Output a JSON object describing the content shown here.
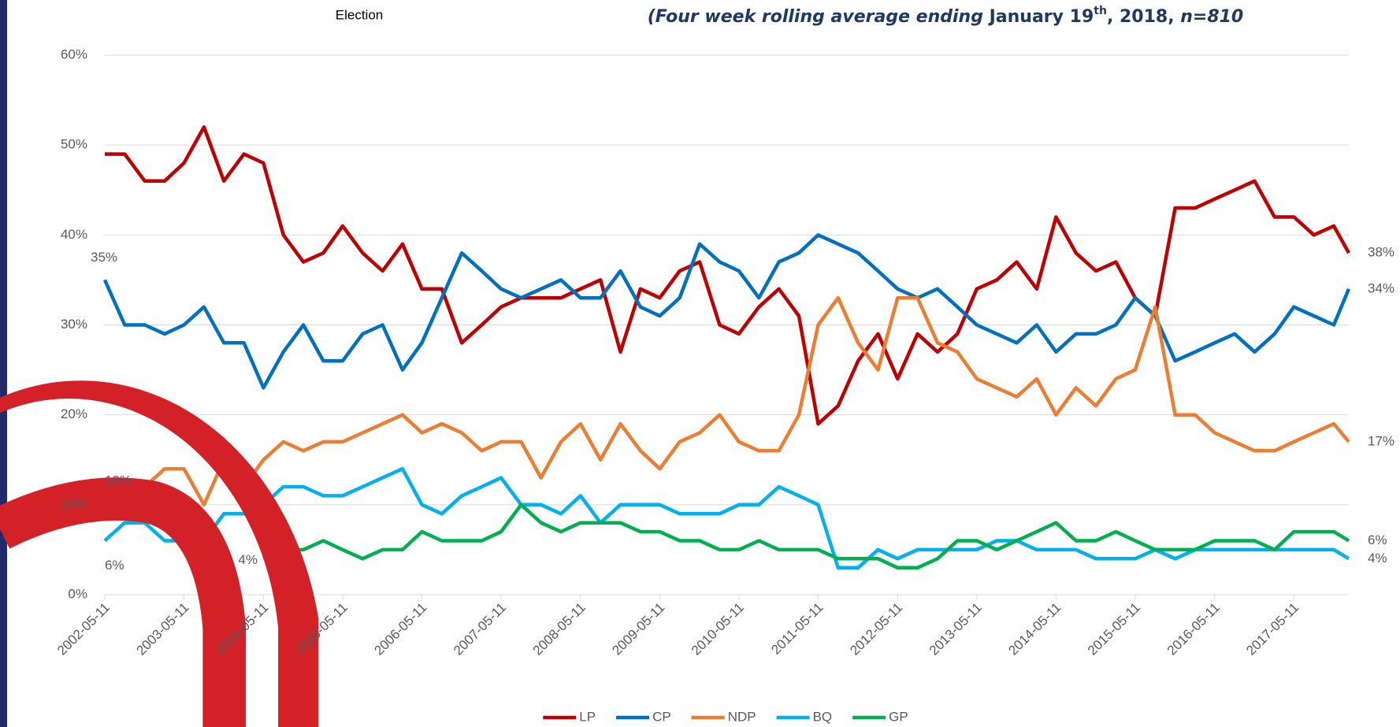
{
  "chart_data": {
    "type": "line",
    "title": "Election",
    "subtitle_parts": [
      "(Four week rolling average ending ",
      "January 19",
      "th",
      ", 2018, ",
      "n=810"
    ],
    "x": [
      "2002-05-11",
      "2002-08-11",
      "2002-11-11",
      "2003-02-11",
      "2003-05-11",
      "2003-08-11",
      "2003-11-11",
      "2004-02-11",
      "2004-05-11",
      "2004-08-11",
      "2004-11-11",
      "2005-02-11",
      "2005-05-11",
      "2005-08-11",
      "2005-11-11",
      "2006-02-11",
      "2006-05-11",
      "2006-08-11",
      "2006-11-11",
      "2007-02-11",
      "2007-05-11",
      "2007-08-11",
      "2007-11-11",
      "2008-02-11",
      "2008-05-11",
      "2008-08-11",
      "2008-11-11",
      "2009-02-11",
      "2009-05-11",
      "2009-08-11",
      "2009-11-11",
      "2010-02-11",
      "2010-05-11",
      "2010-08-11",
      "2010-11-11",
      "2011-02-11",
      "2011-05-11",
      "2011-08-11",
      "2011-11-11",
      "2012-02-11",
      "2012-05-11",
      "2012-08-11",
      "2012-11-11",
      "2013-02-11",
      "2013-05-11",
      "2013-08-11",
      "2013-11-11",
      "2014-02-11",
      "2014-05-11",
      "2014-08-11",
      "2014-11-11",
      "2015-02-11",
      "2015-05-11",
      "2015-08-11",
      "2015-11-11",
      "2016-02-11",
      "2016-05-11",
      "2016-08-11",
      "2016-11-11",
      "2017-02-11",
      "2017-05-11",
      "2017-08-11",
      "2017-11-11",
      "2018-01-19"
    ],
    "xlim": [
      "2002-05-11",
      "2018-01-19"
    ],
    "xticks": [
      "2002-05-11",
      "2003-05-11",
      "2004-05-11",
      "2005-05-11",
      "2006-05-11",
      "2007-05-11",
      "2008-05-11",
      "2009-05-11",
      "2010-05-11",
      "2011-05-11",
      "2012-05-11",
      "2013-05-11",
      "2014-05-11",
      "2015-05-11",
      "2016-05-11",
      "2017-05-11"
    ],
    "ylim": [
      0,
      60
    ],
    "yticks": [
      {
        "value": 0,
        "label": "0%"
      },
      {
        "value": 10,
        "label": "10%"
      },
      {
        "value": 20,
        "label": "20%"
      },
      {
        "value": 30,
        "label": "30%"
      },
      {
        "value": 40,
        "label": "40%"
      },
      {
        "value": 50,
        "label": "50%"
      },
      {
        "value": 60,
        "label": "60%"
      }
    ],
    "grid": true,
    "legend": "bottom",
    "series": [
      {
        "name": "LP",
        "color": "#c00000",
        "values": [
          49,
          49,
          46,
          46,
          48,
          52,
          46,
          49,
          48,
          40,
          37,
          38,
          41,
          38,
          36,
          39,
          34,
          34,
          28,
          30,
          32,
          33,
          33,
          33,
          34,
          35,
          27,
          34,
          33,
          36,
          37,
          30,
          29,
          32,
          34,
          31,
          19,
          21,
          26,
          29,
          24,
          29,
          27,
          29,
          34,
          35,
          37,
          34,
          42,
          38,
          36,
          37,
          33,
          31,
          43,
          43,
          44,
          45,
          46,
          42,
          42,
          40,
          41,
          38
        ],
        "value_labels": [
          null,
          null,
          null,
          null,
          null,
          null,
          null,
          null,
          null,
          null,
          null,
          null,
          null,
          null,
          null,
          null,
          null,
          null,
          null,
          null,
          null,
          null,
          null,
          null,
          null,
          null,
          null,
          null,
          null,
          null,
          null,
          null,
          null,
          null,
          null,
          null,
          null,
          null,
          null,
          null,
          null,
          null,
          null,
          null,
          null,
          null,
          null,
          null,
          null,
          null,
          null,
          null,
          null,
          null,
          null,
          null,
          null,
          null,
          null,
          null,
          null,
          null,
          null,
          "38%"
        ]
      },
      {
        "name": "CP",
        "color": "#0070c0",
        "values": [
          35,
          30,
          30,
          29,
          30,
          32,
          28,
          28,
          23,
          27,
          30,
          26,
          26,
          29,
          30,
          25,
          28,
          33,
          38,
          36,
          34,
          33,
          34,
          35,
          33,
          33,
          36,
          32,
          31,
          33,
          39,
          37,
          36,
          33,
          37,
          38,
          40,
          39,
          38,
          36,
          34,
          33,
          34,
          32,
          30,
          29,
          28,
          30,
          27,
          29,
          29,
          30,
          33,
          31,
          26,
          27,
          28,
          29,
          27,
          29,
          32,
          31,
          30,
          34
        ],
        "value_labels": [
          "35%",
          null,
          null,
          null,
          null,
          null,
          null,
          null,
          null,
          null,
          null,
          null,
          null,
          null,
          null,
          null,
          null,
          null,
          null,
          null,
          null,
          null,
          null,
          null,
          null,
          null,
          null,
          null,
          null,
          null,
          null,
          null,
          null,
          null,
          null,
          null,
          null,
          null,
          null,
          null,
          null,
          null,
          null,
          null,
          null,
          null,
          null,
          null,
          null,
          null,
          null,
          null,
          null,
          null,
          null,
          null,
          null,
          null,
          null,
          null,
          null,
          null,
          null,
          "34%"
        ]
      },
      {
        "name": "NDP",
        "color": "#ed7d31",
        "values": [
          10,
          12,
          12,
          14,
          14,
          10,
          15,
          12,
          15,
          17,
          16,
          17,
          17,
          18,
          19,
          20,
          18,
          19,
          18,
          16,
          17,
          17,
          13,
          17,
          19,
          15,
          19,
          16,
          14,
          17,
          18,
          20,
          17,
          16,
          16,
          20,
          30,
          33,
          28,
          25,
          33,
          33,
          28,
          27,
          24,
          23,
          22,
          24,
          20,
          23,
          21,
          24,
          25,
          32,
          20,
          20,
          18,
          17,
          16,
          16,
          17,
          18,
          19,
          17
        ],
        "value_labels": [
          "10%",
          null,
          null,
          null,
          null,
          null,
          null,
          null,
          null,
          null,
          null,
          null,
          null,
          null,
          null,
          null,
          null,
          null,
          null,
          null,
          null,
          null,
          null,
          null,
          null,
          null,
          null,
          null,
          null,
          null,
          null,
          null,
          null,
          null,
          null,
          null,
          null,
          null,
          null,
          null,
          null,
          null,
          null,
          null,
          null,
          null,
          null,
          null,
          null,
          null,
          null,
          null,
          null,
          null,
          null,
          null,
          null,
          null,
          null,
          null,
          null,
          null,
          null,
          "17%"
        ]
      },
      {
        "name": "BQ",
        "color": "#00b0f0",
        "values": [
          6,
          8,
          8,
          6,
          6,
          6,
          9,
          9,
          10,
          12,
          12,
          11,
          11,
          12,
          13,
          14,
          10,
          9,
          11,
          12,
          13,
          10,
          10,
          9,
          11,
          8,
          10,
          10,
          10,
          9,
          9,
          9,
          10,
          10,
          12,
          11,
          10,
          3,
          3,
          5,
          4,
          5,
          5,
          5,
          5,
          6,
          6,
          5,
          5,
          5,
          4,
          4,
          4,
          5,
          4,
          5,
          5,
          5,
          5,
          5,
          5,
          5,
          5,
          4
        ],
        "value_labels": [
          "6%",
          null,
          null,
          null,
          null,
          null,
          null,
          null,
          null,
          null,
          null,
          null,
          null,
          null,
          null,
          null,
          null,
          null,
          null,
          null,
          null,
          null,
          null,
          null,
          null,
          null,
          null,
          null,
          null,
          null,
          null,
          null,
          null,
          null,
          null,
          null,
          null,
          null,
          null,
          null,
          null,
          null,
          null,
          null,
          null,
          null,
          null,
          null,
          null,
          null,
          null,
          null,
          null,
          null,
          null,
          null,
          null,
          null,
          null,
          null,
          null,
          null,
          null,
          "4%"
        ]
      },
      {
        "name": "GP",
        "color": "#00b050",
        "values": [
          null,
          null,
          null,
          null,
          null,
          null,
          null,
          null,
          4,
          5,
          5,
          6,
          5,
          4,
          5,
          5,
          7,
          6,
          6,
          6,
          7,
          10,
          8,
          7,
          8,
          8,
          8,
          7,
          7,
          6,
          6,
          5,
          5,
          6,
          5,
          5,
          5,
          4,
          4,
          4,
          3,
          3,
          4,
          6,
          6,
          5,
          6,
          7,
          8,
          6,
          6,
          7,
          6,
          5,
          5,
          5,
          6,
          6,
          6,
          5,
          7,
          7,
          7,
          6
        ],
        "value_labels": [
          null,
          null,
          null,
          null,
          null,
          null,
          null,
          null,
          "4%",
          null,
          null,
          null,
          null,
          null,
          null,
          null,
          null,
          null,
          null,
          null,
          null,
          null,
          null,
          null,
          null,
          null,
          null,
          null,
          null,
          null,
          null,
          null,
          null,
          null,
          null,
          null,
          null,
          null,
          null,
          null,
          null,
          null,
          null,
          null,
          null,
          null,
          null,
          null,
          null,
          null,
          null,
          null,
          null,
          null,
          null,
          null,
          null,
          null,
          null,
          null,
          null,
          null,
          null,
          "6%"
        ]
      }
    ]
  }
}
